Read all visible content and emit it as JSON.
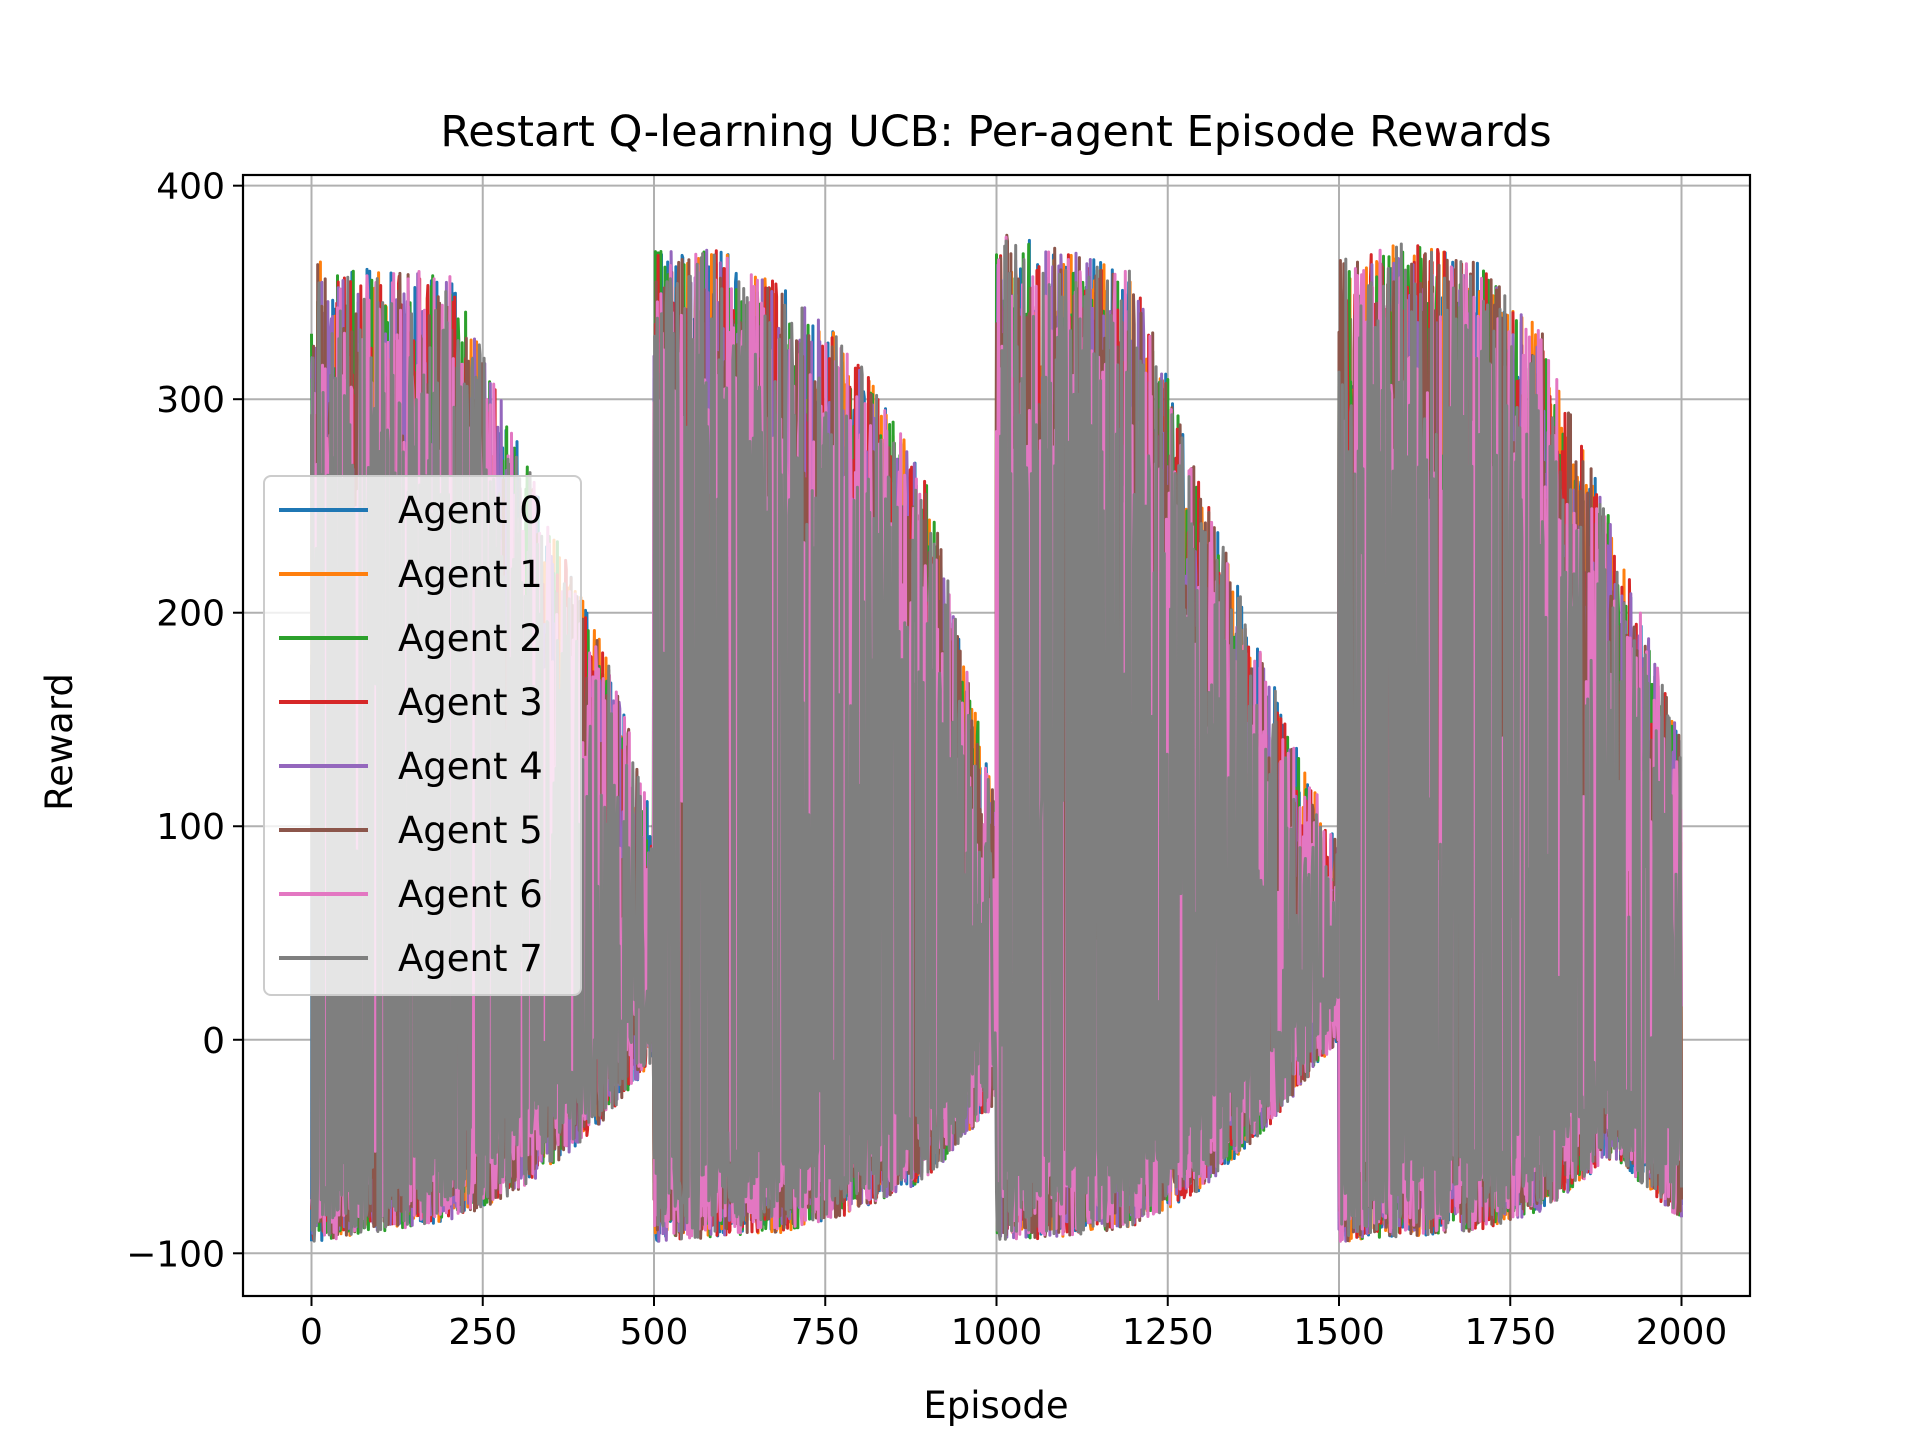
{
  "chart_data": {
    "type": "line",
    "title": "Restart Q-learning UCB: Per-agent Episode Rewards",
    "xlabel": "Episode",
    "ylabel": "Reward",
    "xlim": [
      -100,
      2100
    ],
    "ylim": [
      -120,
      405
    ],
    "xticks": [
      0,
      250,
      500,
      750,
      1000,
      1250,
      1500,
      1750,
      2000
    ],
    "yticks": [
      -100,
      0,
      100,
      200,
      300,
      400
    ],
    "xtick_labels": [
      "0",
      "250",
      "500",
      "750",
      "1000",
      "1250",
      "1500",
      "1750",
      "2000"
    ],
    "ytick_labels": [
      "−100",
      "0",
      "100",
      "200",
      "300",
      "400"
    ],
    "grid": true,
    "legend_position": "center-left",
    "restart_period": 500,
    "episodes": 2000,
    "series": [
      {
        "name": "Agent 0",
        "color": "#1f77b4"
      },
      {
        "name": "Agent 1",
        "color": "#ff7f0e"
      },
      {
        "name": "Agent 2",
        "color": "#2ca02c"
      },
      {
        "name": "Agent 3",
        "color": "#d62728"
      },
      {
        "name": "Agent 4",
        "color": "#9467bd"
      },
      {
        "name": "Agent 5",
        "color": "#8c564b"
      },
      {
        "name": "Agent 6",
        "color": "#e377c2"
      },
      {
        "name": "Agent 7",
        "color": "#7f7f7f"
      }
    ],
    "envelope": [
      {
        "x": 0,
        "max": 365,
        "min": -95
      },
      {
        "x": 100,
        "max": 360,
        "min": -90
      },
      {
        "x": 200,
        "max": 360,
        "min": -85
      },
      {
        "x": 280,
        "max": 300,
        "min": -75
      },
      {
        "x": 350,
        "max": 240,
        "min": -60
      },
      {
        "x": 420,
        "max": 190,
        "min": -40
      },
      {
        "x": 499,
        "max": 110,
        "min": -10
      },
      {
        "x": 500,
        "max": 370,
        "min": -95
      },
      {
        "x": 600,
        "max": 370,
        "min": -92
      },
      {
        "x": 700,
        "max": 350,
        "min": -90
      },
      {
        "x": 800,
        "max": 320,
        "min": -80
      },
      {
        "x": 900,
        "max": 260,
        "min": -65
      },
      {
        "x": 999,
        "max": 110,
        "min": -30
      },
      {
        "x": 1000,
        "max": 380,
        "min": -95
      },
      {
        "x": 1100,
        "max": 370,
        "min": -92
      },
      {
        "x": 1200,
        "max": 360,
        "min": -88
      },
      {
        "x": 1300,
        "max": 260,
        "min": -70
      },
      {
        "x": 1400,
        "max": 170,
        "min": -40
      },
      {
        "x": 1499,
        "max": 90,
        "min": 0
      },
      {
        "x": 1500,
        "max": 365,
        "min": -95
      },
      {
        "x": 1600,
        "max": 375,
        "min": -92
      },
      {
        "x": 1700,
        "max": 365,
        "min": -90
      },
      {
        "x": 1800,
        "max": 330,
        "min": -80
      },
      {
        "x": 1900,
        "max": 240,
        "min": -55
      },
      {
        "x": 2000,
        "max": 140,
        "min": -85
      }
    ]
  }
}
